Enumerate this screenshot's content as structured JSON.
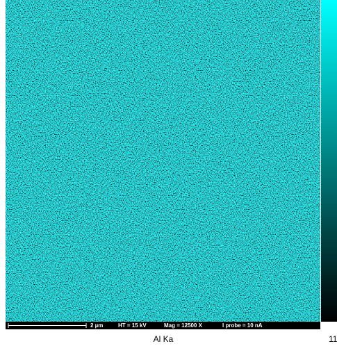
{
  "image": {
    "scale_bar": "2 µm",
    "high_tension": "HT = 15 kV",
    "magnification": "Mag = 12500 X",
    "probe_current": "I probe = 10 nA"
  },
  "caption": "Al Ka",
  "colorbar": {
    "max_label": "11"
  }
}
